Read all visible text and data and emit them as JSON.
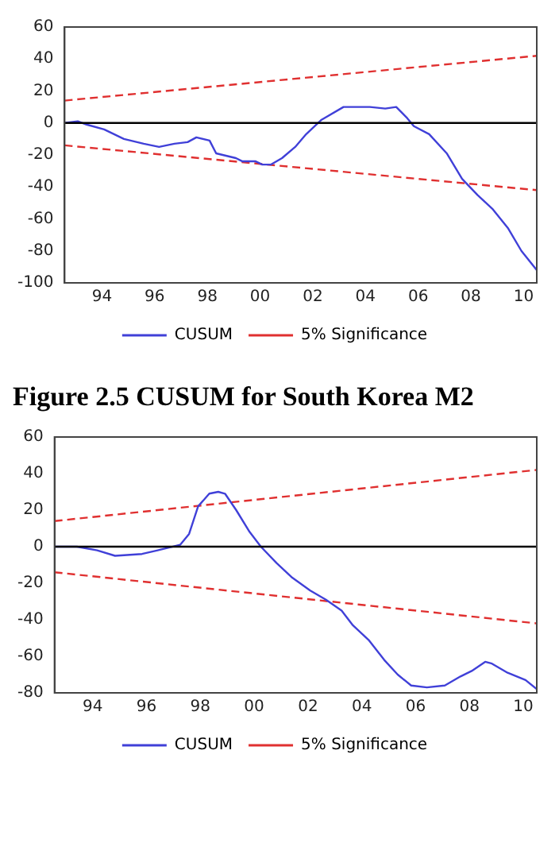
{
  "chart_data": [
    {
      "type": "line",
      "xlim": [
        "1993-01",
        "2010-12"
      ],
      "xticks": [
        {
          "value": "1994-06",
          "label": "94"
        },
        {
          "value": "1996-06",
          "label": "96"
        },
        {
          "value": "1998-06",
          "label": "98"
        },
        {
          "value": "2000-06",
          "label": "00"
        },
        {
          "value": "2002-06",
          "label": "02"
        },
        {
          "value": "2004-06",
          "label": "04"
        },
        {
          "value": "2006-06",
          "label": "06"
        },
        {
          "value": "2008-06",
          "label": "08"
        },
        {
          "value": "2010-06",
          "label": "10"
        }
      ],
      "ylim": [
        -100,
        60
      ],
      "yticks": [
        -100,
        -80,
        -60,
        -40,
        -20,
        0,
        20,
        40,
        60
      ],
      "grid": false,
      "legend": "bottom",
      "line_style": "solid",
      "marker": "none",
      "ref_lines": [
        {
          "axis": "y",
          "value": 0,
          "color": "#000000"
        }
      ],
      "series": [
        {
          "name": "CUSUM",
          "color": "#4040d8",
          "x": [
            "1993-01",
            "1993-07",
            "1993-11",
            "1994-07",
            "1995-04",
            "1996-01",
            "1996-08",
            "1997-03",
            "1997-09",
            "1998-01",
            "1998-07",
            "1998-10",
            "1999-07",
            "1999-10",
            "2000-04",
            "2000-07",
            "2000-11",
            "2001-04",
            "2001-10",
            "2002-03",
            "2002-10",
            "2003-08",
            "2004-08",
            "2005-03",
            "2005-08",
            "2006-01",
            "2006-04",
            "2006-11",
            "2007-07",
            "2008-02",
            "2008-09",
            "2009-04",
            "2009-11",
            "2010-05",
            "2010-12"
          ],
          "values": [
            0,
            1,
            -1,
            -4,
            -10,
            -13,
            -15,
            -13,
            -12,
            -9,
            -11,
            -19,
            -22,
            -24,
            -24,
            -26,
            -26,
            -22,
            -15,
            -7,
            2,
            10,
            10,
            9,
            10,
            3,
            -2,
            -7,
            -19,
            -35,
            -45,
            -54,
            -66,
            -80,
            -92
          ]
        },
        {
          "name": "5% Significance",
          "color": "#e03030",
          "line_style": "dashed",
          "x": [
            "1993-01",
            "2010-12"
          ],
          "values": [
            14,
            42
          ]
        },
        {
          "color": "#e03030",
          "line_style": "dashed",
          "x": [
            "1993-01",
            "2010-12"
          ],
          "values": [
            -14,
            -42
          ]
        }
      ]
    },
    {
      "type": "line",
      "title": "Figure 2.5 CUSUM for South Korea M2",
      "xlim": [
        "1993-01",
        "2010-12"
      ],
      "xticks": [
        {
          "value": "1994-06",
          "label": "94"
        },
        {
          "value": "1996-06",
          "label": "96"
        },
        {
          "value": "1998-06",
          "label": "98"
        },
        {
          "value": "2000-06",
          "label": "00"
        },
        {
          "value": "2002-06",
          "label": "02"
        },
        {
          "value": "2004-06",
          "label": "04"
        },
        {
          "value": "2006-06",
          "label": "06"
        },
        {
          "value": "2008-06",
          "label": "08"
        },
        {
          "value": "2010-06",
          "label": "10"
        }
      ],
      "ylim": [
        -80,
        60
      ],
      "yticks": [
        -80,
        -60,
        -40,
        -20,
        0,
        20,
        40,
        60
      ],
      "grid": false,
      "legend": "bottom",
      "line_style": "solid",
      "marker": "none",
      "ref_lines": [
        {
          "axis": "y",
          "value": 0,
          "color": "#000000"
        }
      ],
      "series": [
        {
          "name": "CUSUM",
          "color": "#4040d8",
          "x": [
            "1993-01",
            "1993-11",
            "1994-08",
            "1995-04",
            "1996-04",
            "1996-11",
            "1997-09",
            "1998-01",
            "1998-05",
            "1998-10",
            "1999-02",
            "1999-05",
            "1999-10",
            "2000-04",
            "2000-09",
            "2001-04",
            "2001-11",
            "2002-07",
            "2003-02",
            "2003-09",
            "2004-02",
            "2004-09",
            "2005-04",
            "2005-10",
            "2006-04",
            "2006-11",
            "2007-07",
            "2008-02",
            "2008-07",
            "2009-01",
            "2009-04",
            "2009-11",
            "2010-07",
            "2010-12"
          ],
          "values": [
            0,
            0,
            -2,
            -5,
            -4,
            -2,
            1,
            7,
            22,
            29,
            30,
            29,
            20,
            8,
            0,
            -9,
            -17,
            -24,
            -29,
            -35,
            -43,
            -51,
            -62,
            -70,
            -76,
            -77,
            -76,
            -71,
            -68,
            -63,
            -64,
            -69,
            -73,
            -78
          ]
        },
        {
          "name": "5% Significance",
          "color": "#e03030",
          "line_style": "dashed",
          "x": [
            "1993-01",
            "2010-12"
          ],
          "values": [
            14,
            42
          ]
        },
        {
          "color": "#e03030",
          "line_style": "dashed",
          "x": [
            "1993-01",
            "2010-12"
          ],
          "values": [
            -14,
            -42
          ]
        }
      ]
    }
  ]
}
